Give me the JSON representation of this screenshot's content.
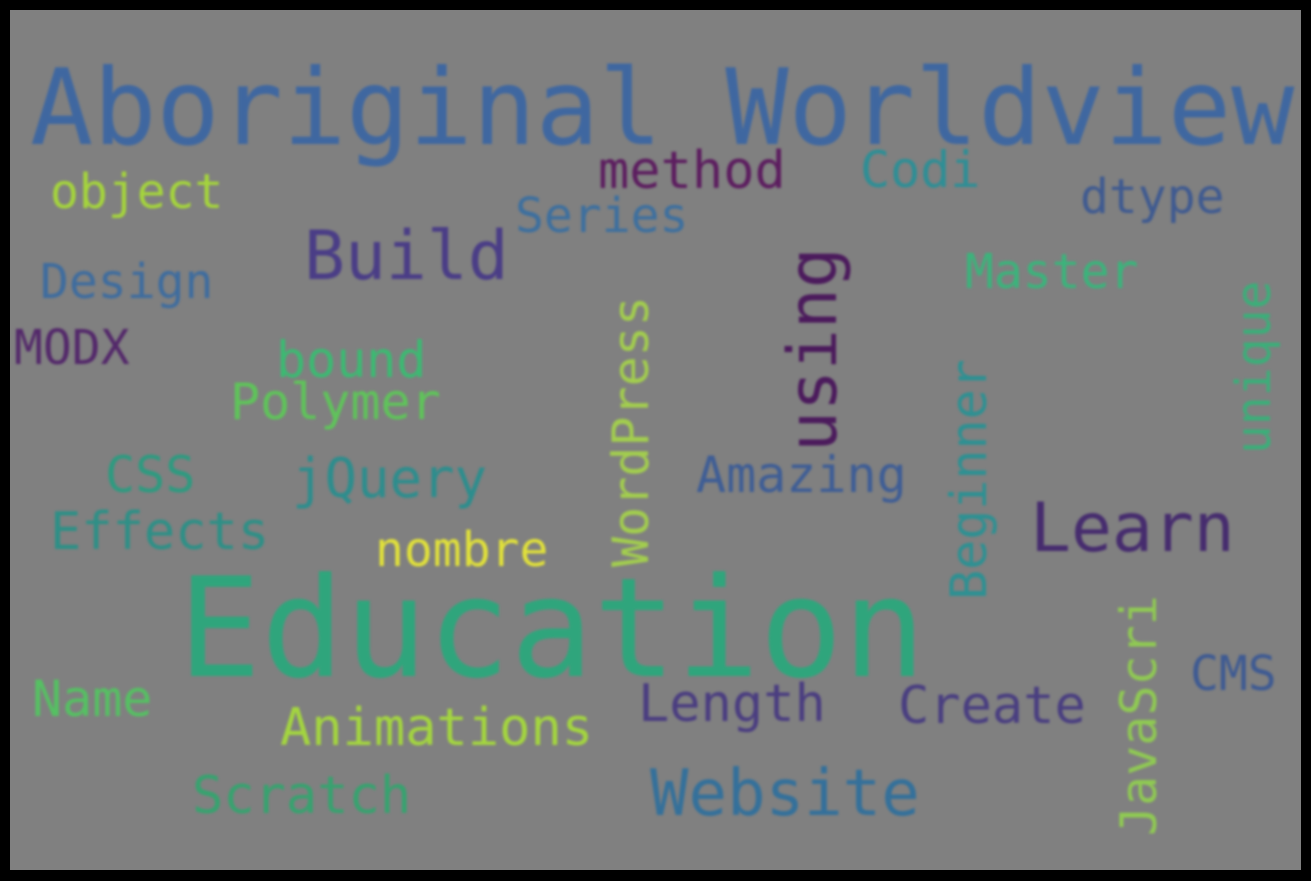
{
  "words": {
    "aboriginal_worldviews": {
      "text": "Aboriginal Worldviews",
      "color": "#3f67a0"
    },
    "education": {
      "text": "Education",
      "color": "#2fa57c"
    },
    "learn": {
      "text": "Learn",
      "color": "#462c6e"
    },
    "build": {
      "text": "Build",
      "color": "#4a3d86"
    },
    "using": {
      "text": "using",
      "color": "#4b1a5c"
    },
    "website": {
      "text": "Website",
      "color": "#34709a"
    },
    "method": {
      "text": "method",
      "color": "#5c1d5f"
    },
    "codi": {
      "text": "Codi",
      "color": "#2e8e95"
    },
    "dtype": {
      "text": "dtype",
      "color": "#3f5a90"
    },
    "series": {
      "text": "Series",
      "color": "#3d6f9e"
    },
    "object": {
      "text": "object",
      "color": "#a4d43c"
    },
    "design": {
      "text": "Design",
      "color": "#3e6c9e"
    },
    "modx": {
      "text": "MODX",
      "color": "#53286a"
    },
    "bound": {
      "text": "bound",
      "color": "#3cb972"
    },
    "polymer": {
      "text": "Polymer",
      "color": "#5fc35a"
    },
    "css": {
      "text": "CSS",
      "color": "#2e9a80"
    },
    "jquery": {
      "text": "jQuery",
      "color": "#2d8d8d"
    },
    "effects": {
      "text": "Effects",
      "color": "#2e8f86"
    },
    "nombre": {
      "text": "nombre",
      "color": "#e0e03a"
    },
    "wordpress": {
      "text": "WordPress",
      "color": "#a2cd4e"
    },
    "amazing": {
      "text": "Amazing",
      "color": "#3e5d95"
    },
    "beginner": {
      "text": "Beginner",
      "color": "#2d9092"
    },
    "master": {
      "text": "Master",
      "color": "#3bb37b"
    },
    "unique": {
      "text": "unique",
      "color": "#3bae79"
    },
    "javascri": {
      "text": "JavaScri",
      "color": "#8fc953"
    },
    "cms": {
      "text": "CMS",
      "color": "#3e5a92"
    },
    "create": {
      "text": "Create",
      "color": "#493e80"
    },
    "length": {
      "text": "Length",
      "color": "#4a3d80"
    },
    "name": {
      "text": "Name",
      "color": "#55c062"
    },
    "animations": {
      "text": "Animations",
      "color": "#a3d53f"
    },
    "scratch": {
      "text": "Scratch",
      "color": "#37a26f"
    }
  }
}
